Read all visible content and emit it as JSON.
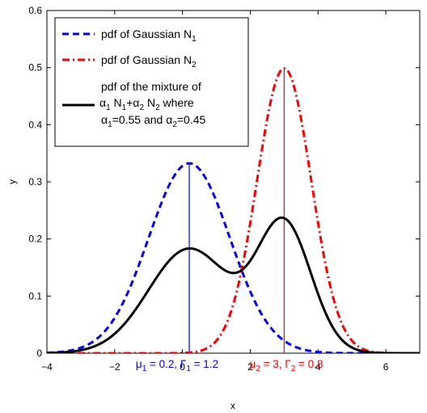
{
  "chart_data": {
    "type": "line",
    "xlabel": "x",
    "ylabel": "y",
    "xlim": [
      -4,
      7
    ],
    "ylim": [
      0,
      0.6
    ],
    "xticks": [
      -4,
      -2,
      0,
      2,
      4,
      6
    ],
    "yticks": [
      0,
      0.1,
      0.2,
      0.3,
      0.4,
      0.5,
      0.6
    ],
    "xtick_labels": [
      "−4",
      "−2",
      "0",
      "2",
      "4",
      "6"
    ],
    "ytick_labels": [
      "0",
      "0.1",
      "0.2",
      "0.3",
      "0.4",
      "0.5",
      "0.6"
    ],
    "grid": false,
    "legend_position": "top-left",
    "legend": [
      {
        "lines": [
          {
            "text": "pdf of Gaussian N",
            "sub": "1"
          }
        ]
      },
      {
        "lines": [
          {
            "text": "pdf of Gaussian N",
            "sub": "2"
          }
        ]
      },
      {
        "lines": [
          {
            "text": "pdf of the mixture of"
          },
          {
            "parts": [
              [
                "α",
                "1"
              ],
              [
                " N",
                "1"
              ],
              [
                "+α",
                "2"
              ],
              [
                " N",
                "2"
              ],
              [
                " where",
                ""
              ]
            ]
          },
          {
            "parts": [
              [
                "α",
                "1"
              ],
              [
                "=0.55 and α",
                "2"
              ],
              [
                "=0.45",
                ""
              ]
            ]
          }
        ]
      }
    ],
    "series": [
      {
        "mu": 0.2,
        "gamma": 1.2,
        "color": "#0000ff",
        "style": "dashed"
      },
      {
        "mu": 3,
        "gamma": 0.8,
        "color": "#ff0000",
        "style": "dashdot"
      },
      {
        "mixture": true,
        "weights": [
          0.55,
          0.45
        ],
        "color": "#000000",
        "style": "solid"
      }
    ],
    "peak_markers": [
      {
        "x": 0.2,
        "y": 0.3325,
        "color": "#0000ff"
      },
      {
        "x": 3,
        "y": 0.4987,
        "color": "#ff0000"
      }
    ],
    "annotations": [
      {
        "color": "#0000ff",
        "parts": [
          [
            "μ",
            "1"
          ],
          [
            " = 0.2, Γ",
            "1"
          ],
          [
            " = 1.2",
            ""
          ]
        ]
      },
      {
        "color": "#ff0000",
        "parts": [
          [
            "μ",
            "2"
          ],
          [
            " = 3, Γ",
            "2"
          ],
          [
            " = 0.8",
            ""
          ]
        ]
      }
    ]
  }
}
